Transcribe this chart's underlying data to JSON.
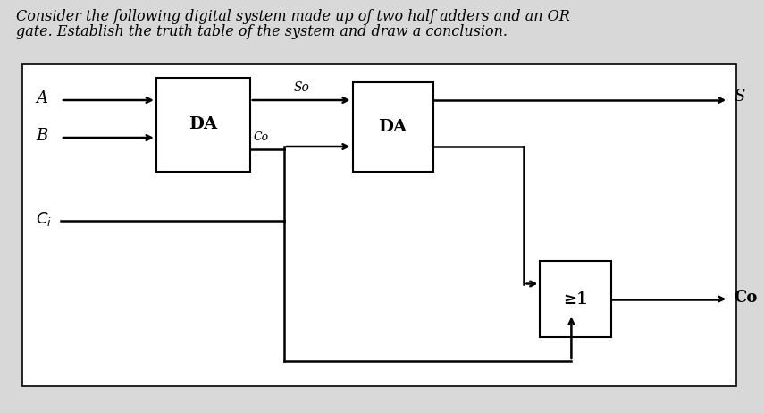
{
  "title_line1": "Consider the following digital system made up of two half adders and an OR",
  "title_line2": "gate. Establish the truth table of the system and draw a conclusion.",
  "bg_color": "#d8d8d8",
  "diagram_bg": "#ffffff",
  "text_color": "#000000",
  "da1_label": "DA",
  "da2_label": "DA",
  "or_label": "≥1",
  "input_A": "A",
  "input_B": "B",
  "output_S": "S",
  "output_Co": "Co",
  "wire_So": "So",
  "wire_Co": "Co"
}
